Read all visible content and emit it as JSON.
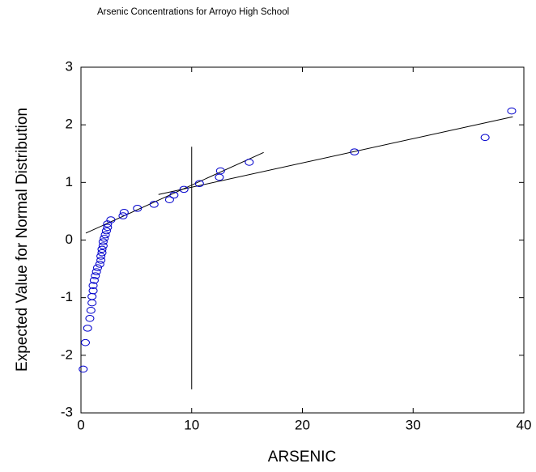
{
  "chart_data": {
    "type": "scatter",
    "title": "Arsenic Concentrations for Arroyo High School",
    "xlabel": "ARSENIC",
    "ylabel": "Expected Value for Normal Distribution",
    "color": "#0000cc",
    "x": [
      0.2,
      0.4,
      0.6,
      0.8,
      0.9,
      1.0,
      1.0,
      1.1,
      1.1,
      1.2,
      1.3,
      1.4,
      1.5,
      1.7,
      1.8,
      1.8,
      1.9,
      1.9,
      2.0,
      2.0,
      2.1,
      2.2,
      2.3,
      2.4,
      2.4,
      2.7,
      3.8,
      3.9,
      5.1,
      6.6,
      8.0,
      8.4,
      9.3,
      10.7,
      12.5,
      12.6,
      15.2,
      24.7,
      36.5,
      38.9
    ],
    "y": [
      -2.24,
      -1.78,
      -1.53,
      -1.36,
      -1.22,
      -1.09,
      -0.98,
      -0.88,
      -0.79,
      -0.7,
      -0.62,
      -0.55,
      -0.48,
      -0.42,
      -0.35,
      -0.28,
      -0.22,
      -0.16,
      -0.1,
      -0.03,
      0.03,
      0.09,
      0.16,
      0.22,
      0.28,
      0.35,
      0.42,
      0.48,
      0.55,
      0.62,
      0.7,
      0.78,
      0.88,
      0.98,
      1.09,
      1.2,
      1.35,
      1.53,
      1.78,
      2.24
    ],
    "lines": [
      {
        "x": [
          0.44,
          16.5
        ],
        "y": [
          0.12,
          1.52
        ]
      },
      {
        "x": [
          7.0,
          39.0
        ],
        "y": [
          0.79,
          2.14
        ]
      },
      {
        "x": [
          10,
          10
        ],
        "y": [
          1.62,
          -2.59
        ]
      }
    ],
    "xlim": [
      0,
      40
    ],
    "xticks": [
      0,
      10,
      20,
      30,
      40
    ],
    "ylim": [
      -3,
      3
    ],
    "yticks": [
      -3,
      -2,
      -1,
      0,
      1,
      2,
      3
    ]
  }
}
